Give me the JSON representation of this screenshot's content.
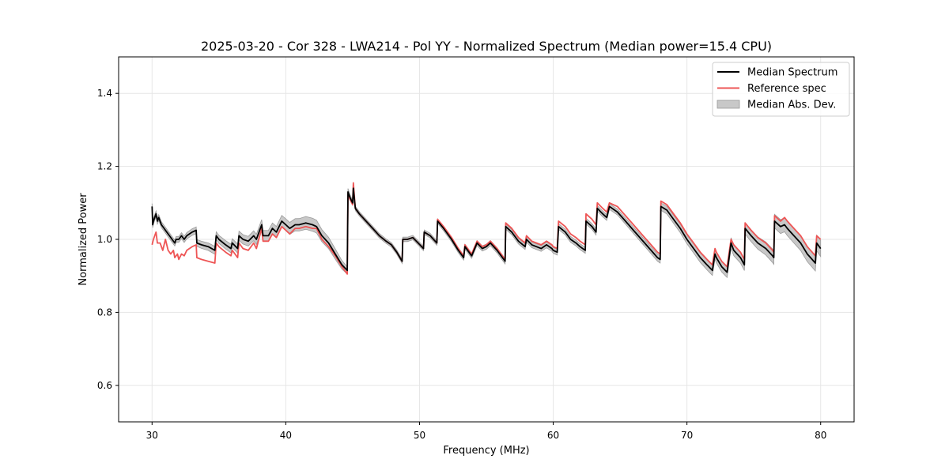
{
  "chart_data": {
    "type": "line",
    "title": "2025-03-20 - Cor 328 - LWA214 - Pol YY - Normalized Spectrum (Median power=15.4 CPU)",
    "xlabel": "Frequency (MHz)",
    "ylabel": "Normalized Power",
    "xlim": [
      27.5,
      82.5
    ],
    "ylim": [
      0.5,
      1.5
    ],
    "xticks": [
      30,
      40,
      50,
      60,
      70,
      80
    ],
    "xtick_labels": [
      "30",
      "40",
      "50",
      "60",
      "70",
      "80"
    ],
    "yticks": [
      0.6,
      0.8,
      1.0,
      1.2,
      1.4
    ],
    "ytick_labels": [
      "0.6",
      "0.8",
      "1.0",
      "1.2",
      "1.4"
    ],
    "grid": true,
    "legend_position": "top-right",
    "colors": {
      "median": "#000000",
      "reference": "#ee5555",
      "mad": "#c8c8c8",
      "mad_edge": "#9a9a9a",
      "grid": "#e6e6e6"
    },
    "legend": [
      {
        "label": "Median Spectrum",
        "kind": "line",
        "color": "#000000"
      },
      {
        "label": "Reference spec",
        "kind": "line",
        "color": "#ee5555"
      },
      {
        "label": "Median Abs. Dev.",
        "kind": "patch",
        "color": "#c8c8c8"
      }
    ],
    "series": [
      {
        "name": "Median Spectrum",
        "x": [
          30.0,
          30.05,
          30.1,
          30.3,
          30.4,
          30.5,
          30.6,
          30.7,
          30.9,
          31.1,
          31.3,
          31.5,
          31.7,
          31.8,
          32.0,
          32.2,
          32.4,
          32.6,
          33.0,
          33.3,
          33.35,
          33.7,
          34.2,
          34.7,
          34.8,
          35.0,
          35.5,
          35.9,
          36.0,
          36.4,
          36.5,
          36.8,
          37.2,
          37.6,
          37.8,
          38.2,
          38.3,
          38.7,
          39.0,
          39.3,
          39.7,
          40.0,
          40.3,
          40.7,
          41.0,
          41.5,
          42.0,
          42.3,
          42.7,
          43.2,
          43.7,
          44.2,
          44.6,
          44.65,
          44.8,
          45.0,
          45.05,
          45.2,
          45.5,
          46.0,
          46.5,
          47.0,
          47.5,
          47.9,
          48.3,
          48.7,
          48.75,
          49.1,
          49.5,
          49.9,
          50.3,
          50.35,
          50.8,
          51.3,
          51.35,
          51.8,
          52.4,
          52.9,
          53.3,
          53.4,
          53.7,
          53.9,
          54.3,
          54.7,
          55.0,
          55.3,
          55.8,
          56.3,
          56.4,
          56.45,
          56.9,
          57.4,
          57.9,
          58.0,
          58.4,
          59.1,
          59.5,
          59.9,
          60.0,
          60.3,
          60.4,
          60.9,
          61.3,
          61.7,
          62.0,
          62.4,
          62.45,
          62.9,
          63.2,
          63.3,
          63.7,
          64.0,
          64.2,
          64.8,
          65.4,
          66.0,
          66.6,
          67.2,
          67.8,
          68.0,
          68.05,
          68.5,
          69.0,
          69.5,
          70.0,
          70.5,
          71.0,
          71.5,
          71.9,
          72.1,
          72.2,
          72.6,
          73.0,
          73.3,
          73.5,
          74.0,
          74.3,
          74.35,
          74.8,
          75.3,
          75.9,
          76.4,
          76.5,
          76.55,
          77.0,
          77.3,
          77.5,
          78.0,
          78.5,
          79.0,
          79.6,
          79.7,
          80.0
        ],
        "values": [
          1.09,
          1.04,
          1.05,
          1.07,
          1.05,
          1.06,
          1.05,
          1.04,
          1.03,
          1.02,
          1.01,
          1.0,
          0.99,
          1.0,
          1.0,
          1.01,
          1.0,
          1.01,
          1.02,
          1.025,
          0.99,
          0.985,
          0.98,
          0.97,
          1.01,
          1.0,
          0.985,
          0.975,
          0.99,
          0.975,
          1.01,
          1.0,
          0.995,
          1.01,
          1.0,
          1.04,
          1.01,
          1.01,
          1.03,
          1.02,
          1.05,
          1.04,
          1.03,
          1.04,
          1.04,
          1.045,
          1.04,
          1.035,
          1.01,
          0.99,
          0.96,
          0.93,
          0.915,
          1.13,
          1.115,
          1.1,
          1.14,
          1.085,
          1.07,
          1.05,
          1.03,
          1.01,
          0.995,
          0.985,
          0.965,
          0.94,
          1.0,
          1.0,
          1.005,
          0.99,
          0.975,
          1.02,
          1.01,
          0.99,
          1.05,
          1.03,
          1.0,
          0.97,
          0.95,
          0.98,
          0.965,
          0.955,
          0.99,
          0.975,
          0.98,
          0.99,
          0.97,
          0.945,
          0.94,
          1.035,
          1.02,
          0.995,
          0.98,
          1.0,
          0.985,
          0.975,
          0.985,
          0.975,
          0.97,
          0.965,
          1.035,
          1.02,
          1.0,
          0.99,
          0.98,
          0.97,
          1.05,
          1.035,
          1.02,
          1.085,
          1.07,
          1.06,
          1.09,
          1.075,
          1.05,
          1.025,
          1.0,
          0.975,
          0.95,
          0.945,
          1.09,
          1.08,
          1.055,
          1.03,
          1.0,
          0.975,
          0.95,
          0.93,
          0.915,
          0.96,
          0.95,
          0.925,
          0.91,
          0.99,
          0.97,
          0.95,
          0.93,
          1.03,
          1.01,
          0.99,
          0.975,
          0.955,
          0.95,
          1.05,
          1.035,
          1.04,
          1.03,
          1.01,
          0.99,
          0.96,
          0.935,
          0.99,
          0.975
        ]
      },
      {
        "name": "Reference spec",
        "x": [
          30.0,
          30.1,
          30.3,
          30.4,
          30.6,
          30.8,
          31.0,
          31.2,
          31.4,
          31.6,
          31.7,
          31.9,
          32.0,
          32.2,
          32.4,
          32.6,
          33.0,
          33.3,
          33.35,
          33.7,
          34.2,
          34.7,
          34.8,
          35.0,
          35.5,
          35.9,
          36.0,
          36.4,
          36.5,
          36.8,
          37.2,
          37.6,
          37.8,
          38.2,
          38.3,
          38.7,
          39.0,
          39.3,
          39.7,
          40.0,
          40.3,
          40.7,
          41.0,
          41.5,
          42.0,
          42.3,
          42.7,
          43.2,
          43.7,
          44.2,
          44.6,
          44.65,
          44.8,
          45.0,
          45.05,
          45.2,
          45.5,
          46.0,
          46.5,
          47.0,
          47.5,
          47.9,
          48.3,
          48.7,
          48.75,
          49.1,
          49.5,
          49.9,
          50.3,
          50.35,
          50.8,
          51.3,
          51.35,
          51.8,
          52.4,
          52.9,
          53.3,
          53.4,
          53.7,
          53.9,
          54.3,
          54.7,
          55.0,
          55.3,
          55.8,
          56.3,
          56.4,
          56.45,
          56.9,
          57.4,
          57.9,
          58.0,
          58.4,
          59.1,
          59.5,
          59.9,
          60.0,
          60.3,
          60.4,
          60.9,
          61.3,
          61.7,
          62.0,
          62.4,
          62.45,
          62.9,
          63.2,
          63.3,
          63.7,
          64.0,
          64.2,
          64.8,
          65.4,
          66.0,
          66.6,
          67.2,
          67.8,
          68.0,
          68.05,
          68.5,
          69.0,
          69.5,
          70.0,
          70.5,
          71.0,
          71.5,
          71.9,
          72.1,
          72.2,
          72.6,
          73.0,
          73.3,
          73.5,
          74.0,
          74.3,
          74.35,
          74.8,
          75.3,
          75.9,
          76.4,
          76.5,
          76.55,
          77.0,
          77.3,
          77.5,
          78.0,
          78.5,
          79.0,
          79.6,
          79.7,
          80.0
        ],
        "values": [
          0.985,
          1.0,
          1.02,
          0.99,
          0.99,
          0.97,
          1.0,
          0.97,
          0.96,
          0.97,
          0.95,
          0.96,
          0.945,
          0.96,
          0.955,
          0.97,
          0.98,
          0.985,
          0.95,
          0.945,
          0.94,
          0.935,
          0.99,
          0.98,
          0.965,
          0.955,
          0.97,
          0.95,
          0.99,
          0.975,
          0.97,
          0.99,
          0.975,
          1.03,
          0.995,
          0.995,
          1.015,
          1.005,
          1.035,
          1.025,
          1.015,
          1.03,
          1.03,
          1.035,
          1.03,
          1.03,
          1.0,
          0.98,
          0.955,
          0.925,
          0.905,
          1.125,
          1.11,
          1.095,
          1.155,
          1.085,
          1.07,
          1.05,
          1.03,
          1.01,
          0.995,
          0.985,
          0.965,
          0.94,
          1.0,
          1.0,
          1.005,
          0.99,
          0.975,
          1.02,
          1.01,
          0.99,
          1.055,
          1.035,
          1.005,
          0.975,
          0.955,
          0.985,
          0.97,
          0.96,
          0.995,
          0.98,
          0.985,
          0.995,
          0.975,
          0.95,
          0.945,
          1.045,
          1.03,
          1.005,
          0.99,
          1.01,
          0.995,
          0.985,
          0.995,
          0.985,
          0.98,
          0.975,
          1.05,
          1.035,
          1.015,
          1.005,
          0.995,
          0.985,
          1.07,
          1.055,
          1.04,
          1.1,
          1.085,
          1.075,
          1.1,
          1.09,
          1.065,
          1.04,
          1.015,
          0.99,
          0.965,
          0.96,
          1.105,
          1.095,
          1.07,
          1.045,
          1.015,
          0.99,
          0.965,
          0.945,
          0.93,
          0.975,
          0.965,
          0.94,
          0.925,
          1.0,
          0.985,
          0.965,
          0.945,
          1.045,
          1.025,
          1.005,
          0.99,
          0.97,
          0.965,
          1.065,
          1.05,
          1.06,
          1.05,
          1.03,
          1.01,
          0.98,
          0.955,
          1.01,
          1.0
        ]
      }
    ],
    "mad_band": {
      "name": "Median Abs. Dev.",
      "x": [
        30.0,
        32.0,
        34.0,
        36.0,
        38.0,
        40.0,
        42.0,
        43.5,
        44.6,
        45.0,
        50.0,
        55.0,
        60.0,
        65.0,
        68.0,
        70.0,
        72.0,
        74.0,
        76.0,
        78.0,
        80.0
      ],
      "halfwidth": [
        0.008,
        0.008,
        0.01,
        0.012,
        0.014,
        0.016,
        0.018,
        0.015,
        0.01,
        0.006,
        0.006,
        0.007,
        0.008,
        0.008,
        0.01,
        0.012,
        0.014,
        0.015,
        0.018,
        0.02,
        0.022
      ]
    }
  }
}
